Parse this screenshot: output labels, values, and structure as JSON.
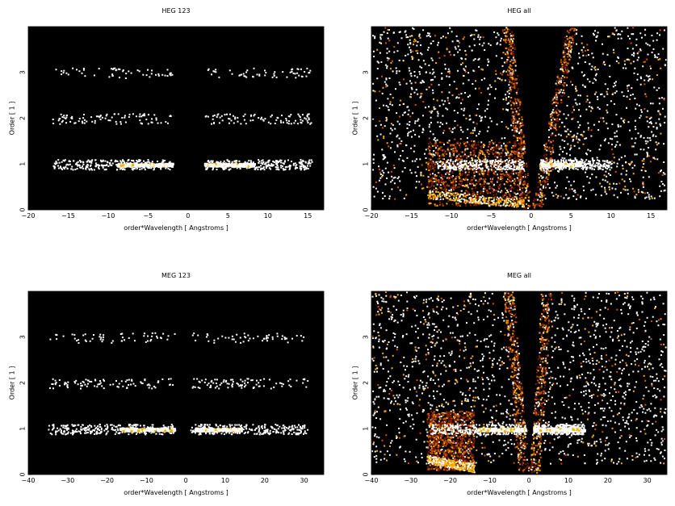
{
  "chart_data": [
    {
      "type": "heatmap",
      "title": "HEG 123",
      "xlabel": "order*Wavelength [ Angstroms ]",
      "ylabel": "Order [ 1 ]",
      "xlim": [
        -20,
        17
      ],
      "ylim": [
        0,
        4
      ],
      "xticks": [
        -20,
        -15,
        -10,
        -5,
        0,
        5,
        10,
        15
      ],
      "yticks": [
        0,
        1,
        2,
        3
      ],
      "background": "#000000",
      "colormap": [
        "#000000",
        "#7a1a00",
        "#d45500",
        "#ffb000",
        "#ffffff"
      ],
      "wedge": false,
      "bands": [
        {
          "order": 1,
          "x_ranges": [
            [
              -17,
              -2
            ],
            [
              2,
              15.5
            ]
          ],
          "bright_ranges": [
            [
              -9,
              -2
            ],
            [
              2,
              8
            ]
          ],
          "density": "high"
        },
        {
          "order": 2,
          "x_ranges": [
            [
              -17,
              -2
            ],
            [
              2,
              15.5
            ]
          ],
          "density": "medium"
        },
        {
          "order": 3,
          "x_ranges": [
            [
              -17,
              -2
            ],
            [
              2,
              15.5
            ]
          ],
          "density": "low"
        }
      ]
    },
    {
      "type": "heatmap",
      "title": "HEG all",
      "xlabel": "order*Wavelength [ Angstroms ]",
      "ylabel": "Order [ 1 ]",
      "xlim": [
        -20,
        17
      ],
      "ylim": [
        0,
        4
      ],
      "xticks": [
        -20,
        -15,
        -10,
        -5,
        0,
        5,
        10,
        15
      ],
      "yticks": [
        0,
        1,
        2,
        3
      ],
      "background": "#000000",
      "colormap": [
        "#000000",
        "#7a1a00",
        "#d45500",
        "#ffb000",
        "#ffffff"
      ],
      "wedge": true,
      "wedge_x_at_top": [
        -2.4,
        4.3
      ],
      "dense_block": {
        "x": [
          -13,
          -1
        ],
        "y": [
          0,
          1.5
        ]
      },
      "bands": [
        {
          "order": 1,
          "x_ranges": [
            [
              -12,
              -1
            ],
            [
              1,
              10
            ]
          ],
          "bright_ranges": [
            [
              1,
              6
            ]
          ],
          "density": "high"
        }
      ]
    },
    {
      "type": "heatmap",
      "title": "MEG 123",
      "xlabel": "order*Wavelength [ Angstroms ]",
      "ylabel": "Order [ 1 ]",
      "xlim": [
        -40,
        35
      ],
      "ylim": [
        0,
        4
      ],
      "xticks": [
        -40,
        -30,
        -20,
        -10,
        0,
        10,
        20,
        30
      ],
      "yticks": [
        0,
        1,
        2,
        3
      ],
      "background": "#000000",
      "colormap": [
        "#000000",
        "#7a1a00",
        "#d45500",
        "#ffb000",
        "#ffffff"
      ],
      "wedge": false,
      "bands": [
        {
          "order": 1,
          "x_ranges": [
            [
              -35,
              -3
            ],
            [
              1,
              31
            ]
          ],
          "bright_ranges": [
            [
              -17,
              -3
            ],
            [
              2,
              14
            ]
          ],
          "density": "high"
        },
        {
          "order": 2,
          "x_ranges": [
            [
              -35,
              -3
            ],
            [
              1,
              31
            ]
          ],
          "density": "medium"
        },
        {
          "order": 3,
          "x_ranges": [
            [
              -35,
              -3
            ],
            [
              1,
              31
            ]
          ],
          "density": "low"
        }
      ]
    },
    {
      "type": "heatmap",
      "title": "MEG all",
      "xlabel": "order*Wavelength [ Angstroms ]",
      "ylabel": "Order [ 1 ]",
      "xlim": [
        -40,
        35
      ],
      "ylim": [
        0,
        4
      ],
      "xticks": [
        -40,
        -30,
        -20,
        -10,
        0,
        10,
        20,
        30
      ],
      "yticks": [
        0,
        1,
        2,
        3
      ],
      "background": "#000000",
      "colormap": [
        "#000000",
        "#7a1a00",
        "#d45500",
        "#ffb000",
        "#ffffff"
      ],
      "wedge": true,
      "wedge_x_at_top": [
        -4,
        3
      ],
      "dense_block": {
        "x": [
          -26,
          -14
        ],
        "y": [
          0,
          1.4
        ]
      },
      "bands": [
        {
          "order": 1,
          "x_ranges": [
            [
              -25,
              -1
            ],
            [
              1,
              14
            ]
          ],
          "bright_ranges": [
            [
              -13,
              -1
            ],
            [
              1,
              14
            ]
          ],
          "density": "high"
        }
      ]
    }
  ]
}
